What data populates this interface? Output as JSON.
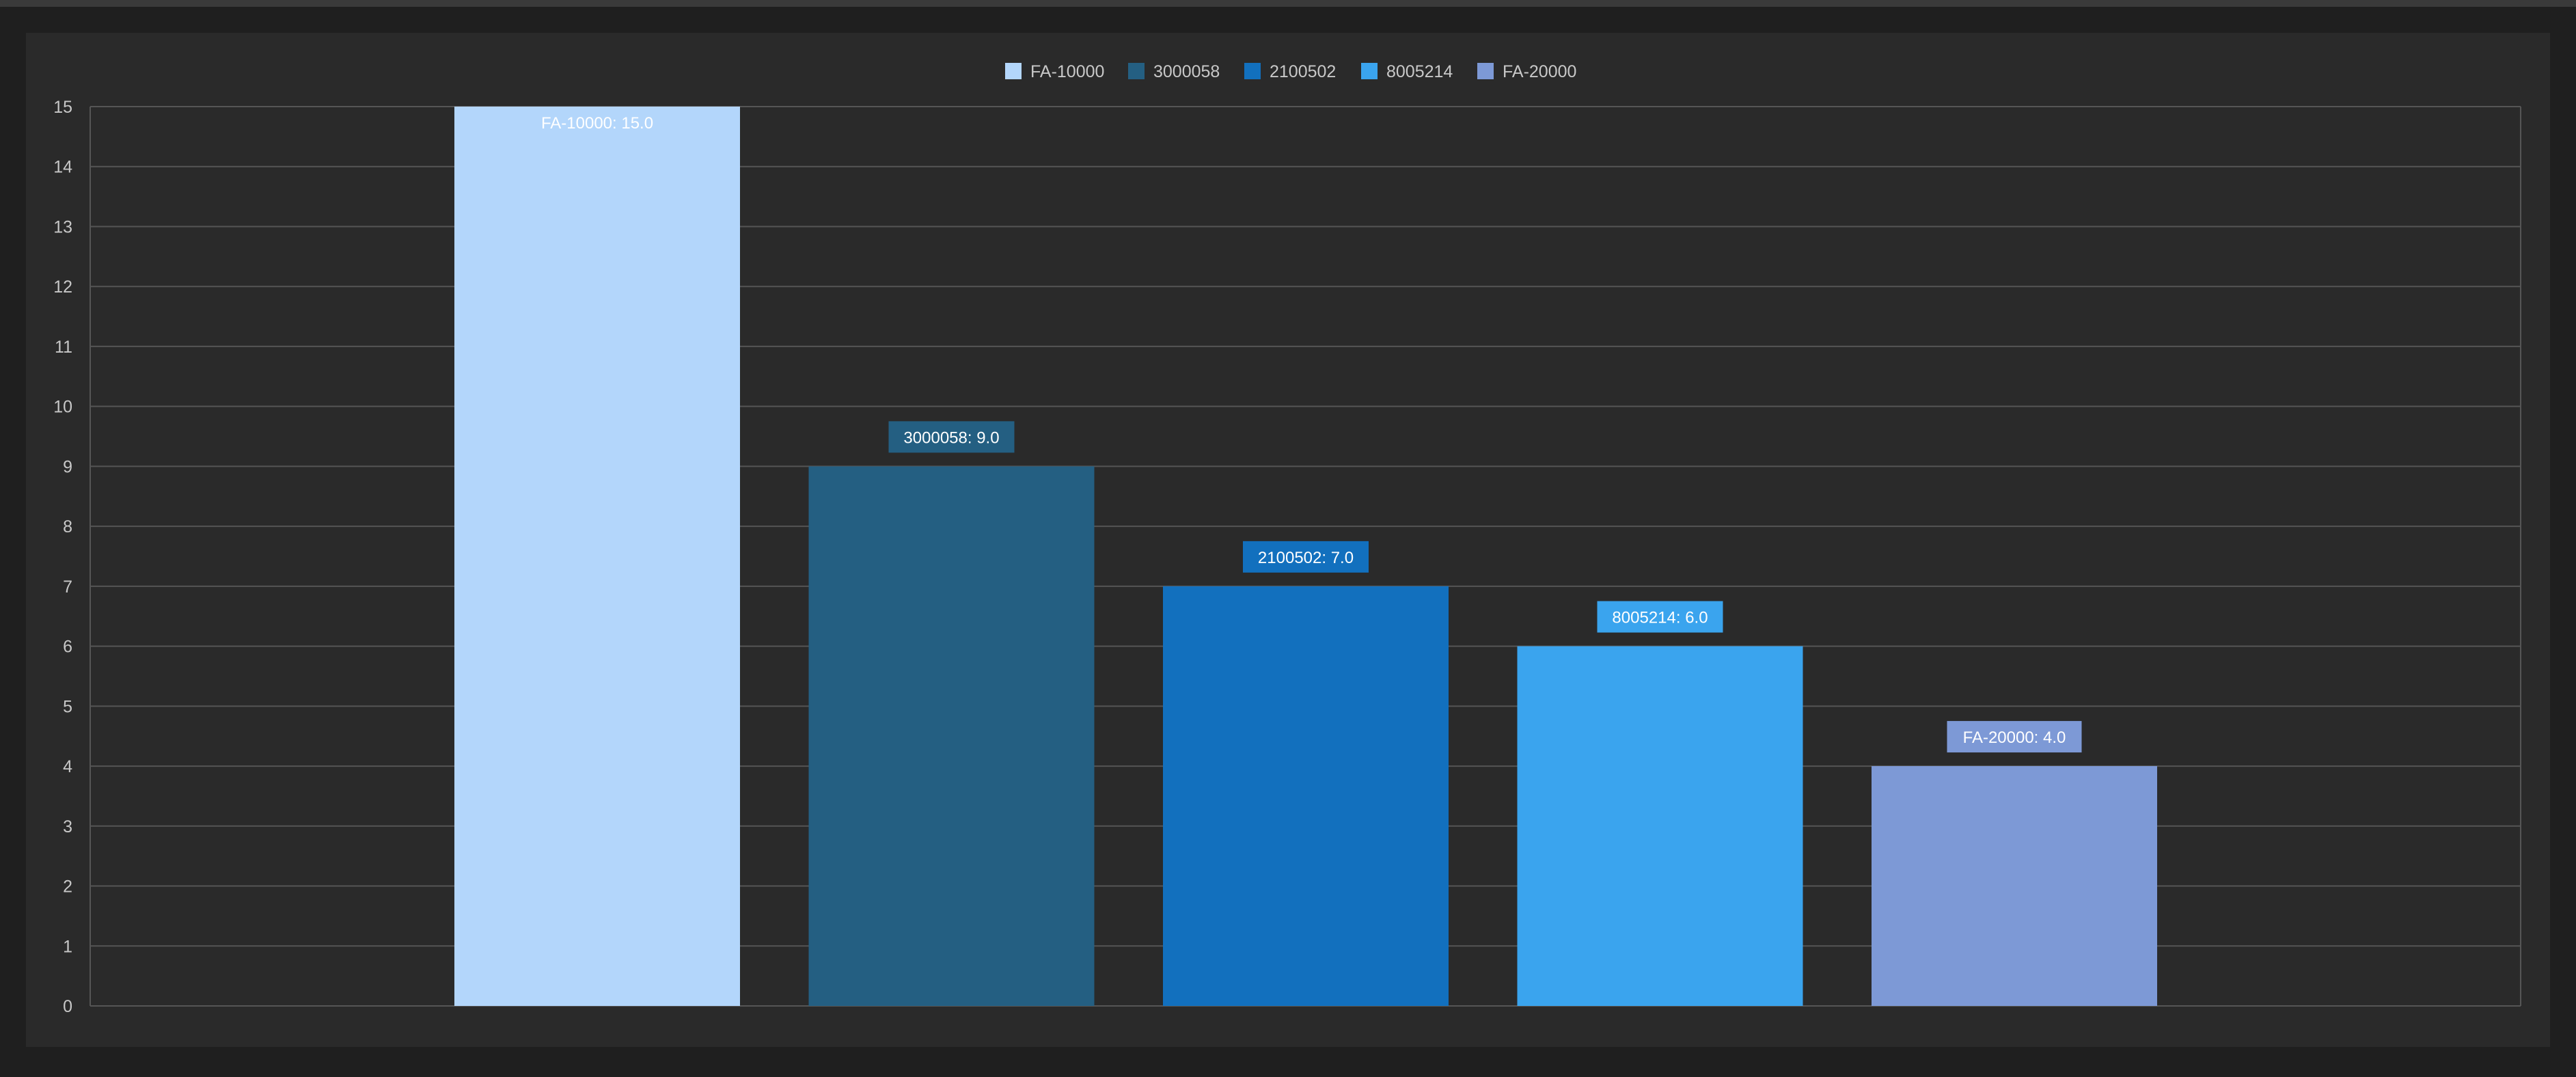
{
  "chart_data": {
    "type": "bar",
    "categories": [
      "FA-10000",
      "3000058",
      "2100502",
      "8005214",
      "FA-20000"
    ],
    "values": [
      15.0,
      9.0,
      7.0,
      6.0,
      4.0
    ],
    "data_labels": [
      "FA-10000: 15.0",
      "3000058: 9.0",
      "2100502: 7.0",
      "8005214: 6.0",
      "FA-20000: 4.0"
    ],
    "colors": [
      "#b3d6fb",
      "#245f82",
      "#1270be",
      "#3aa4ee",
      "#7d99d6"
    ],
    "legend": [
      "FA-10000",
      "3000058",
      "2100502",
      "8005214",
      "FA-20000"
    ],
    "legend_position": "top-center",
    "ylim": [
      0,
      15
    ],
    "yticks": [
      "0",
      "1",
      "2",
      "3",
      "4",
      "5",
      "6",
      "7",
      "8",
      "9",
      "10",
      "11",
      "12",
      "13",
      "14",
      "15"
    ],
    "grid": true,
    "title": "",
    "xlabel": "",
    "ylabel": ""
  },
  "theme": {
    "page_background": "#1f1f1f",
    "panel_background": "#2a2a2a",
    "gridline_color": "#555555",
    "text_color": "#c8c8c8"
  }
}
